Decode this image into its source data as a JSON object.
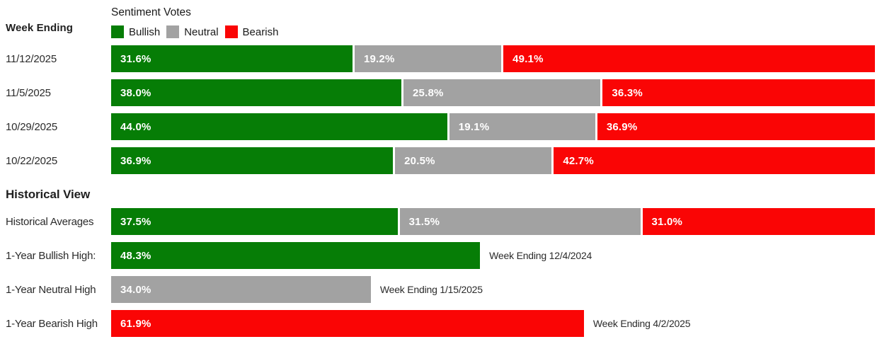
{
  "chart_data": {
    "type": "bar",
    "orientation": "horizontal",
    "stacked": true,
    "title": "Sentiment Votes",
    "row_axis_label": "Week Ending",
    "value_unit": "%",
    "xlim": [
      0,
      100
    ],
    "grid": false,
    "legend_position": "top",
    "colors": {
      "bullish": "#067d06",
      "neutral": "#a2a2a2",
      "bearish": "#fa0505"
    },
    "legend": [
      {
        "label": "Bullish",
        "color_key": "bullish"
      },
      {
        "label": "Neutral",
        "color_key": "neutral"
      },
      {
        "label": "Bearish",
        "color_key": "bearish"
      }
    ],
    "weekly_rows": [
      {
        "label": "11/12/2025",
        "bullish": 31.6,
        "neutral": 19.2,
        "bearish": 49.1
      },
      {
        "label": "11/5/2025",
        "bullish": 38.0,
        "neutral": 25.8,
        "bearish": 36.3
      },
      {
        "label": "10/29/2025",
        "bullish": 44.0,
        "neutral": 19.1,
        "bearish": 36.9
      },
      {
        "label": "10/22/2025",
        "bullish": 36.9,
        "neutral": 20.5,
        "bearish": 42.7
      }
    ],
    "historical_section": {
      "heading": "Historical View",
      "averages_row": {
        "label": "Historical Averages",
        "bullish": 37.5,
        "neutral": 31.5,
        "bearish": 31.0
      },
      "extremes": [
        {
          "label": "1-Year Bullish High:",
          "value": 48.3,
          "color_key": "bullish",
          "annotation": "Week Ending 12/4/2024"
        },
        {
          "label": "1-Year Neutral High",
          "value": 34.0,
          "color_key": "neutral",
          "annotation": "Week Ending 1/15/2025"
        },
        {
          "label": "1-Year Bearish High",
          "value": 61.9,
          "color_key": "bearish",
          "annotation": "Week Ending 4/2/2025"
        }
      ]
    }
  }
}
